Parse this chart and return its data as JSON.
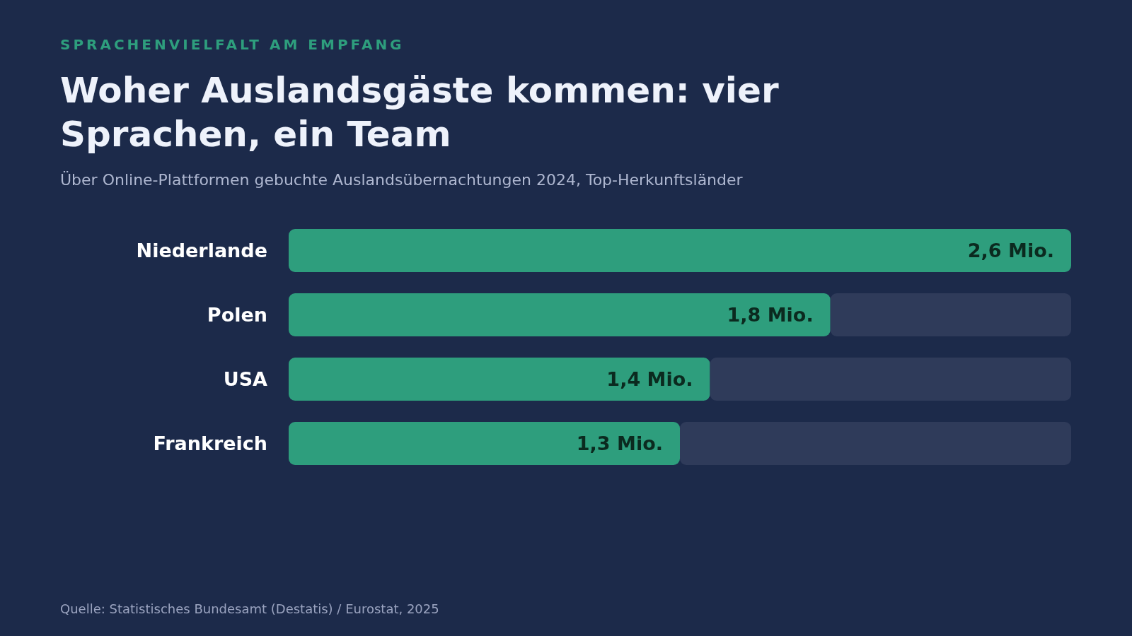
{
  "chart_data": {
    "type": "bar",
    "orientation": "horizontal",
    "stacked": true,
    "title": "Woher Auslandsgäste kommen: vier Sprachen, ein Team",
    "subtitle": "Über Online-Plattformen gebuchte Auslandsübernachtungen 2024, Top-Herkunftsländer",
    "annotations": [
      "SPRACHENVIELFALT AM EMPFANG",
      "Quelle: Statistisches Bundesamt (Destatis) / Eurostat, 2025"
    ],
    "categories": [
      "Niederlande",
      "Polen",
      "USA",
      "Frankreich"
    ],
    "series": [
      {
        "color": "#2e9e7d",
        "values": [
          2.6,
          1.8,
          1.4,
          1.3
        ],
        "value_labels": [
          "2,6 Mio.",
          "1,8 Mio.",
          "1,4 Mio.",
          "1,3 Mio."
        ]
      },
      {
        "color": "#2f3b5a",
        "values": [
          0,
          0.8,
          1.2,
          1.3
        ]
      }
    ]
  }
}
